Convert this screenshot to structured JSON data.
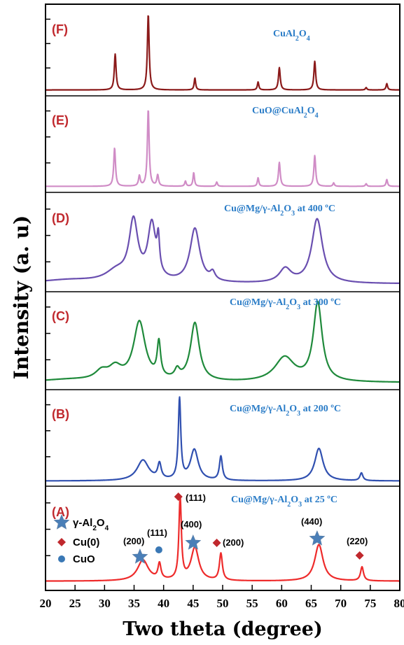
{
  "chart_data": {
    "type": "line",
    "xlabel": "Two theta (degree)",
    "ylabel": "Intensity (a. u)",
    "xlim": [
      20,
      80
    ],
    "xticks": [
      "20",
      "25",
      "30",
      "35",
      "40",
      "45",
      "50",
      "55",
      "60",
      "65",
      "70",
      "75",
      "80"
    ],
    "series": [
      {
        "tag": "(F)",
        "name": "CuAl2O4",
        "color": "#8b1a1a",
        "baseline": 0.03,
        "peaks": [
          {
            "x": 31.8,
            "h": 0.45,
            "w": 0.18
          },
          {
            "x": 37.4,
            "h": 0.95,
            "w": 0.18
          },
          {
            "x": 45.3,
            "h": 0.15,
            "w": 0.15
          },
          {
            "x": 56.0,
            "h": 0.1,
            "w": 0.15
          },
          {
            "x": 59.6,
            "h": 0.28,
            "w": 0.18
          },
          {
            "x": 65.6,
            "h": 0.36,
            "w": 0.18
          },
          {
            "x": 74.3,
            "h": 0.03,
            "w": 0.15
          },
          {
            "x": 77.8,
            "h": 0.08,
            "w": 0.15
          }
        ]
      },
      {
        "tag": "(E)",
        "name": "CuO@CuAl2O4",
        "color": "#d08cc6",
        "baseline": 0.03,
        "peaks": [
          {
            "x": 31.7,
            "h": 0.45,
            "w": 0.18
          },
          {
            "x": 35.9,
            "h": 0.12,
            "w": 0.18
          },
          {
            "x": 37.4,
            "h": 0.9,
            "w": 0.18
          },
          {
            "x": 39.0,
            "h": 0.13,
            "w": 0.18
          },
          {
            "x": 43.7,
            "h": 0.06,
            "w": 0.15
          },
          {
            "x": 45.1,
            "h": 0.16,
            "w": 0.15
          },
          {
            "x": 49.0,
            "h": 0.05,
            "w": 0.15
          },
          {
            "x": 56.0,
            "h": 0.1,
            "w": 0.15
          },
          {
            "x": 59.6,
            "h": 0.28,
            "w": 0.18
          },
          {
            "x": 65.6,
            "h": 0.36,
            "w": 0.18
          },
          {
            "x": 68.8,
            "h": 0.04,
            "w": 0.15
          },
          {
            "x": 74.3,
            "h": 0.03,
            "w": 0.15
          },
          {
            "x": 77.8,
            "h": 0.08,
            "w": 0.15
          }
        ]
      },
      {
        "tag": "(D)",
        "name": "Cu@Mg/γ-Al2O3  at 400 ºC",
        "color": "#6a4fb0",
        "baseline": 0.05,
        "peaks": [
          {
            "x": 24.0,
            "h": 0.04,
            "w": 6.0
          },
          {
            "x": 32.0,
            "h": 0.12,
            "w": 2.2
          },
          {
            "x": 34.9,
            "h": 0.68,
            "w": 0.9
          },
          {
            "x": 38.0,
            "h": 0.64,
            "w": 0.8
          },
          {
            "x": 39.1,
            "h": 0.36,
            "w": 0.25
          },
          {
            "x": 45.3,
            "h": 0.62,
            "w": 1.0
          },
          {
            "x": 48.3,
            "h": 0.09,
            "w": 0.5
          },
          {
            "x": 60.6,
            "h": 0.16,
            "w": 1.2
          },
          {
            "x": 66.0,
            "h": 0.74,
            "w": 1.1
          }
        ]
      },
      {
        "tag": "(C)",
        "name": "Cu@Mg/γ-Al2O3 at 300 ºC",
        "color": "#1f8a3b",
        "baseline": 0.04,
        "peaks": [
          {
            "x": 24.0,
            "h": 0.03,
            "w": 6.0
          },
          {
            "x": 29.5,
            "h": 0.1,
            "w": 1.3
          },
          {
            "x": 31.8,
            "h": 0.14,
            "w": 1.3
          },
          {
            "x": 35.9,
            "h": 0.68,
            "w": 1.2
          },
          {
            "x": 39.2,
            "h": 0.4,
            "w": 0.35
          },
          {
            "x": 42.3,
            "h": 0.1,
            "w": 0.5
          },
          {
            "x": 45.3,
            "h": 0.67,
            "w": 0.9
          },
          {
            "x": 60.5,
            "h": 0.28,
            "w": 2.0
          },
          {
            "x": 66.1,
            "h": 0.9,
            "w": 0.9
          }
        ]
      },
      {
        "tag": "(B)",
        "name": "Cu@Mg/γ-Al2O3 at 200 ºC",
        "color": "#3050b0",
        "baseline": 0.02,
        "peaks": [
          {
            "x": 36.5,
            "h": 0.24,
            "w": 1.2
          },
          {
            "x": 39.3,
            "h": 0.18,
            "w": 0.35
          },
          {
            "x": 42.7,
            "h": 0.94,
            "w": 0.25
          },
          {
            "x": 45.2,
            "h": 0.36,
            "w": 0.8
          },
          {
            "x": 49.7,
            "h": 0.28,
            "w": 0.3
          },
          {
            "x": 66.3,
            "h": 0.38,
            "w": 0.85
          },
          {
            "x": 73.5,
            "h": 0.09,
            "w": 0.3
          }
        ]
      },
      {
        "tag": "(A)",
        "name": "Cu@Mg/γ-Al2O3 at 25 ºC",
        "color": "#ee2b2b",
        "baseline": 0.01,
        "peaks": [
          {
            "x": 36.5,
            "h": 0.24,
            "w": 1.1
          },
          {
            "x": 39.3,
            "h": 0.18,
            "w": 0.3
          },
          {
            "x": 42.8,
            "h": 0.94,
            "w": 0.25
          },
          {
            "x": 45.3,
            "h": 0.38,
            "w": 0.8
          },
          {
            "x": 49.7,
            "h": 0.31,
            "w": 0.3
          },
          {
            "x": 66.3,
            "h": 0.42,
            "w": 0.85
          },
          {
            "x": 73.6,
            "h": 0.16,
            "w": 0.3
          }
        ]
      }
    ],
    "legend": [
      {
        "marker": "star",
        "color": "#3a78b5",
        "label": "γ-Al2O4"
      },
      {
        "marker": "diamond",
        "color": "#c0282d",
        "label": "Cu(0)"
      },
      {
        "marker": "circle",
        "color": "#3a78b5",
        "label": "CuO"
      }
    ],
    "annotations": [
      {
        "marker": "star",
        "x": 36.0,
        "label": "(200)"
      },
      {
        "marker": "circle",
        "x": 39.2,
        "label": "(111)"
      },
      {
        "marker": "diamond",
        "x": 42.5,
        "label": "(111)"
      },
      {
        "marker": "star",
        "x": 45.0,
        "label": "(400)"
      },
      {
        "marker": "diamond",
        "x": 49.0,
        "label": "(200)"
      },
      {
        "marker": "star",
        "x": 66.0,
        "label": "(440)"
      },
      {
        "marker": "diamond",
        "x": 73.2,
        "label": "(220)"
      }
    ]
  }
}
